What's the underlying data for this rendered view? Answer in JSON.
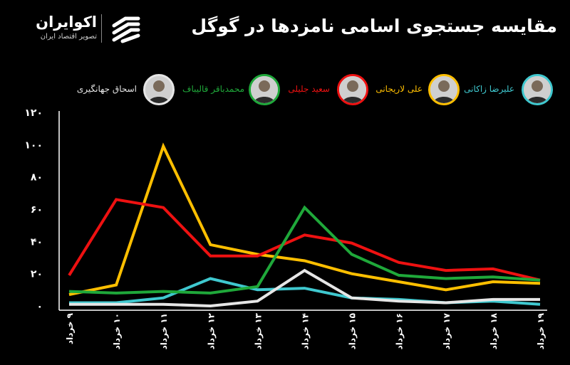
{
  "header": {
    "title": "مقایسه جستجوی اسامی نامزدها در گوگل",
    "logo_name": "اکوایران",
    "logo_sub": "تصویر اقتصاد ایران"
  },
  "chart_data": {
    "type": "line",
    "categories": [
      "۹ خرداد",
      "۱۰ خرداد",
      "۱۱ خرداد",
      "۱۲ خرداد",
      "۱۳ خرداد",
      "۱۴ خرداد",
      "۱۵ خرداد",
      "۱۶ خرداد",
      "۱۷ خرداد",
      "۱۸ خرداد",
      "۱۹ خرداد"
    ],
    "ylim": [
      0,
      120
    ],
    "yticks": [
      0,
      20,
      40,
      60,
      80,
      100,
      120
    ],
    "ytick_labels": [
      "۰",
      "۲۰",
      "۴۰",
      "۶۰",
      "۸۰",
      "۱۰۰",
      "۱۲۰"
    ],
    "grid": false,
    "legend_position": "top",
    "series": [
      {
        "name": "علیرضا زاکانی",
        "color": "#3fc8cf",
        "values": [
          2,
          2,
          5,
          17,
          10,
          11,
          5,
          4,
          2,
          3,
          1
        ]
      },
      {
        "name": "علی لاریجانی",
        "color": "#ffbf00",
        "values": [
          7,
          13,
          99,
          38,
          32,
          28,
          20,
          15,
          10,
          15,
          14
        ]
      },
      {
        "name": "سعید جلیلی",
        "color": "#ee1111",
        "values": [
          19,
          66,
          61,
          31,
          31,
          44,
          39,
          27,
          22,
          23,
          16
        ]
      },
      {
        "name": "محمدباقر قالیباف",
        "color": "#1fa83a",
        "values": [
          9,
          8,
          9,
          8,
          12,
          61,
          32,
          19,
          17,
          18,
          16
        ]
      },
      {
        "name": "اسحاق جهانگیری",
        "color": "#e6e6e6",
        "values": [
          1,
          1,
          1,
          0,
          3,
          22,
          5,
          3,
          2,
          4,
          4
        ]
      }
    ]
  }
}
